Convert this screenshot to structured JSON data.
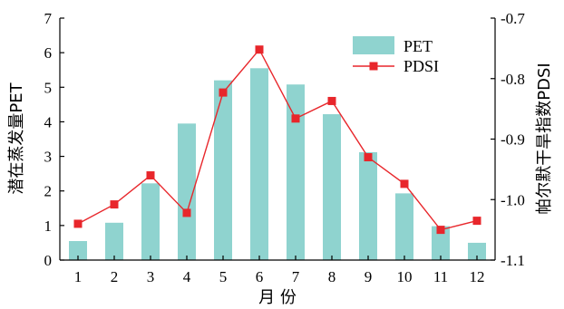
{
  "chart_data": {
    "type": "bar+line",
    "categories": [
      "1",
      "2",
      "3",
      "4",
      "5",
      "6",
      "7",
      "8",
      "9",
      "10",
      "11",
      "12"
    ],
    "xlabel": "月 份",
    "ylabel_left": "潜在蒸发量PET",
    "ylabel_right": "帕尔默干旱指数PDSI",
    "ylim_left": [
      0,
      7
    ],
    "ylim_right": [
      -1.1,
      -0.7
    ],
    "yticks_left": [
      "0",
      "1",
      "2",
      "3",
      "4",
      "5",
      "6",
      "7"
    ],
    "yticks_right": [
      "-1.1",
      "-1.0",
      "-0.9",
      "-0.8",
      "-0.7"
    ],
    "legend_position": "top-right",
    "grid": false,
    "series": [
      {
        "name": "PET",
        "type": "bar",
        "axis": "left",
        "color": "#8fd3cf",
        "values": [
          0.55,
          1.08,
          2.22,
          3.95,
          5.2,
          5.55,
          5.08,
          4.22,
          3.12,
          1.93,
          0.98,
          0.5
        ]
      },
      {
        "name": "PDSI",
        "type": "line",
        "axis": "right",
        "color": "#e8262b",
        "values": [
          -1.04,
          -1.008,
          -0.96,
          -1.022,
          -0.823,
          -0.752,
          -0.866,
          -0.837,
          -0.93,
          -0.974,
          -1.05,
          -1.035
        ]
      }
    ]
  }
}
